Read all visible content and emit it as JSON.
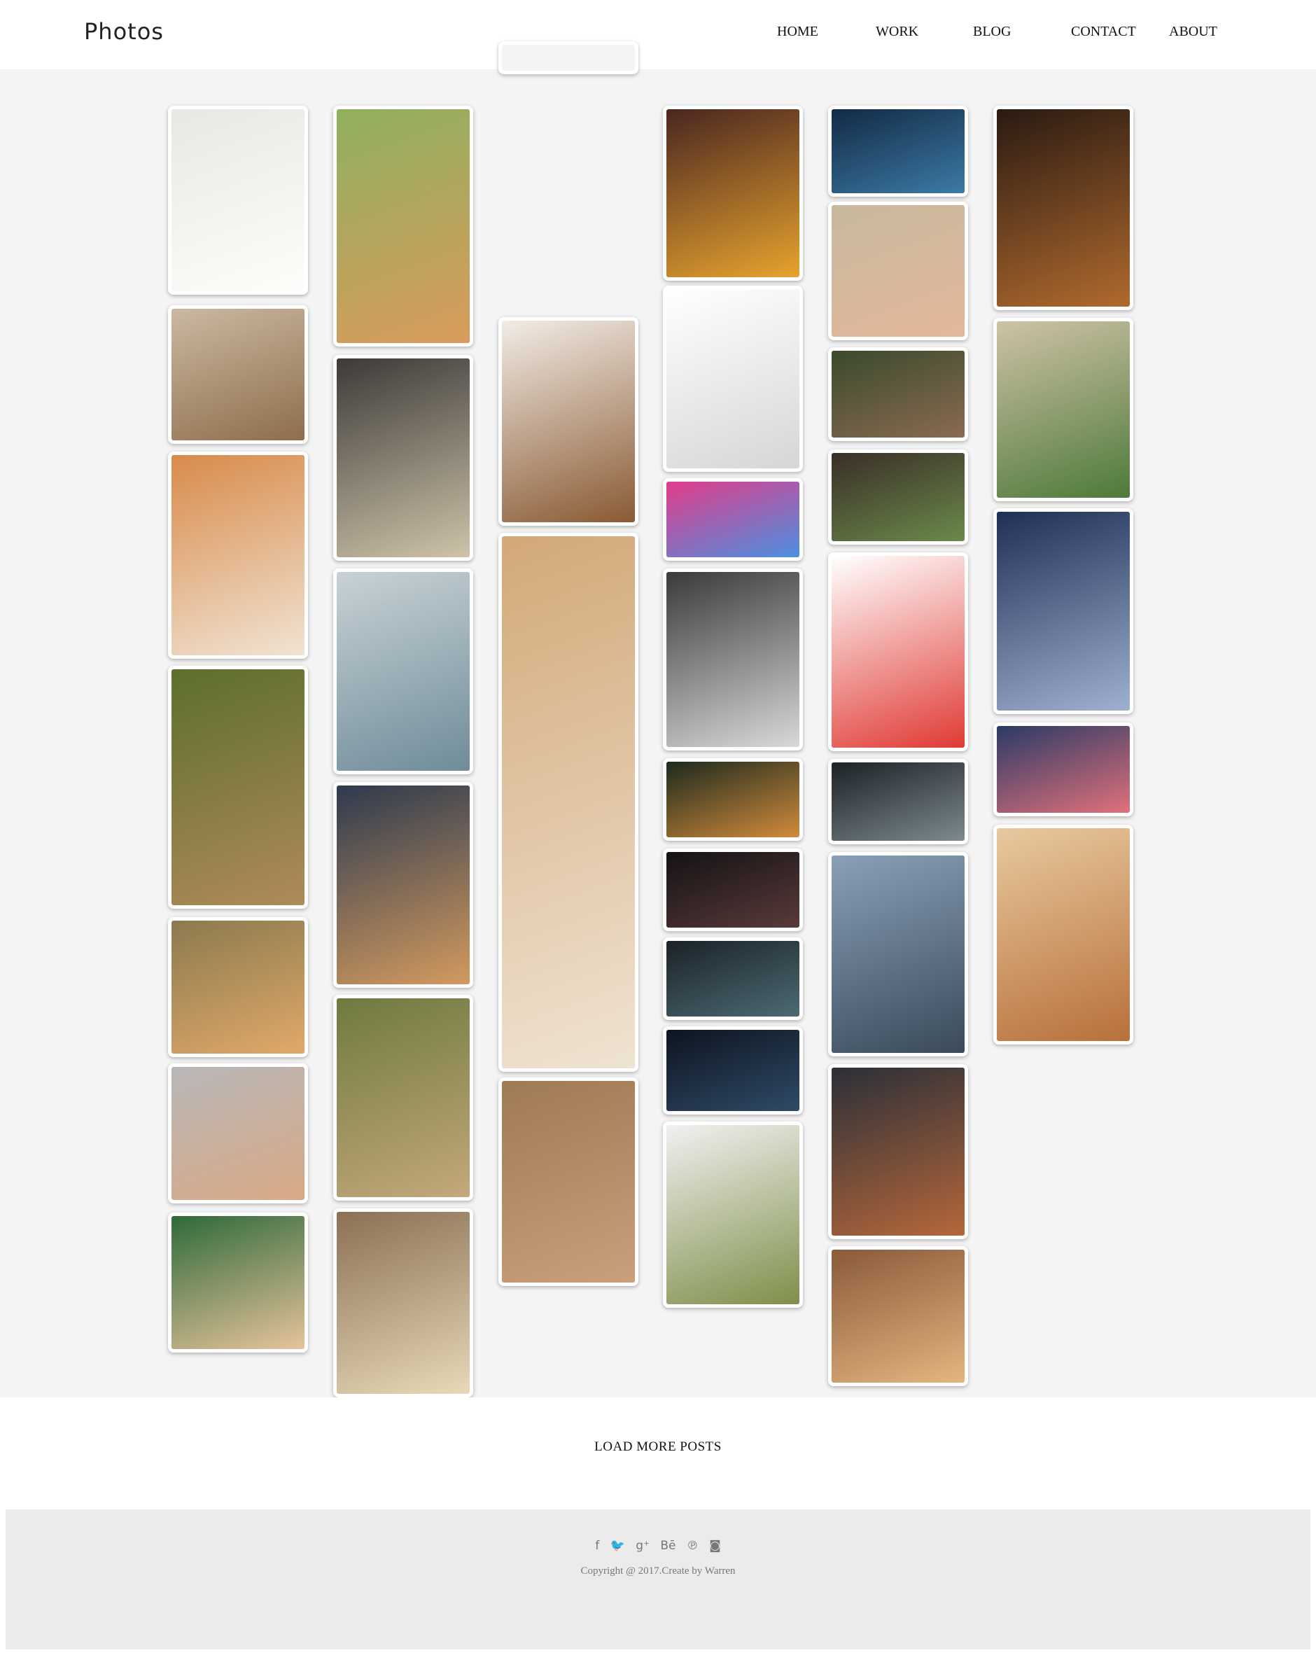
{
  "site": {
    "logo": "Photos"
  },
  "nav": {
    "items": [
      {
        "label": "HOME"
      },
      {
        "label": "WORK"
      },
      {
        "label": "BLOG"
      },
      {
        "label": "CONTACT"
      },
      {
        "label": "ABOUT"
      }
    ]
  },
  "gallery": {
    "photos": [
      {
        "name": "white-pomeranian-puppy",
        "colors": [
          "#e8e8e3",
          "#fdfdfb"
        ]
      },
      {
        "name": "shiba-in-hat",
        "colors": [
          "#cbb9a2",
          "#8e6e4b"
        ]
      },
      {
        "name": "shiba-closeup-face",
        "colors": [
          "#d88b4a",
          "#f1e3d3"
        ]
      },
      {
        "name": "corgi-butt-grass",
        "colors": [
          "#5c6f2c",
          "#b08a5a"
        ]
      },
      {
        "name": "shiba-held-in-hands",
        "colors": [
          "#8b7a4f",
          "#e1a969"
        ]
      },
      {
        "name": "shiba-plush-faces",
        "colors": [
          "#b8b7b8",
          "#d9a985"
        ]
      },
      {
        "name": "corgi-on-field",
        "colors": [
          "#2e6a3a",
          "#e7c39b"
        ]
      },
      {
        "name": "corgi-smiling",
        "colors": [
          "#8fb05e",
          "#d99b5b"
        ]
      },
      {
        "name": "tea-rice-bowl",
        "colors": [
          "#3c3a38",
          "#cfc3a9"
        ]
      },
      {
        "name": "lighthouse-sea",
        "colors": [
          "#c8d2d6",
          "#6f8c99"
        ]
      },
      {
        "name": "sydney-harbour-sunset",
        "colors": [
          "#2d3a4e",
          "#d39a5f"
        ]
      },
      {
        "name": "city-park-aerial",
        "colors": [
          "#6f7a3f",
          "#c4a87b"
        ]
      },
      {
        "name": "dumplings-plate",
        "colors": [
          "#8b7054",
          "#e8d9b9"
        ]
      },
      {
        "name": "cropped-top-card",
        "colors": [
          "#f4f4f4",
          "#f4f4f4"
        ]
      },
      {
        "name": "wonton-tray",
        "colors": [
          "#f2ece6",
          "#8a5a33"
        ]
      },
      {
        "name": "shiba-with-toast-collage",
        "colors": [
          "#d3a878",
          "#efe3d2"
        ]
      },
      {
        "name": "european-alley",
        "colors": [
          "#a07a52",
          "#c9a07a"
        ]
      },
      {
        "name": "noodles-fried-egg",
        "colors": [
          "#4a2620",
          "#e7a32e"
        ]
      },
      {
        "name": "anime-girl-sketch",
        "colors": [
          "#ffffff",
          "#d6d6d6"
        ]
      },
      {
        "name": "low-poly-gradient",
        "colors": [
          "#e23d8a",
          "#4c8fe0"
        ]
      },
      {
        "name": "pencil-sketch-paper",
        "colors": [
          "#3a3a3a",
          "#d9d9d9"
        ]
      },
      {
        "name": "tracer-game-art",
        "colors": [
          "#1d2a1e",
          "#d18b3b"
        ]
      },
      {
        "name": "dark-abstract-shards",
        "colors": [
          "#141214",
          "#5a3a3a"
        ]
      },
      {
        "name": "sports-car-garage",
        "colors": [
          "#1a2228",
          "#4d6a73"
        ]
      },
      {
        "name": "night-city-anime",
        "colors": [
          "#0d1420",
          "#2f4a66"
        ]
      },
      {
        "name": "plant-on-shelf",
        "colors": [
          "#f1f1f1",
          "#7f8f4a"
        ]
      },
      {
        "name": "starry-blue-sky",
        "colors": [
          "#122a45",
          "#3c7aa5"
        ]
      },
      {
        "name": "owl-stones-in-hand",
        "colors": [
          "#c7b89e",
          "#e4b79a"
        ]
      },
      {
        "name": "girl-by-window-1",
        "colors": [
          "#3a4a2c",
          "#8a6a52"
        ]
      },
      {
        "name": "girl-by-window-2",
        "colors": [
          "#3a2e28",
          "#6a8a4a"
        ]
      },
      {
        "name": "red-hair-anime-girl",
        "colors": [
          "#ffffff",
          "#e03a34"
        ]
      },
      {
        "name": "dark-armored-warrior",
        "colors": [
          "#1c2226",
          "#7d8a90"
        ]
      },
      {
        "name": "terrace-over-sea",
        "colors": [
          "#8aa0b8",
          "#3a4a5a"
        ]
      },
      {
        "name": "food-bowls-overhead",
        "colors": [
          "#2b2f38",
          "#b5673a"
        ]
      },
      {
        "name": "golden-retrievers",
        "colors": [
          "#8a5a3a",
          "#e3b680"
        ]
      },
      {
        "name": "glazed-shrimp-pan",
        "colors": [
          "#2a1a12",
          "#b06a2e"
        ]
      },
      {
        "name": "miniature-garden-pot",
        "colors": [
          "#cfc2a6",
          "#4d7a3a"
        ]
      },
      {
        "name": "snowy-trees-sunrise",
        "colors": [
          "#1f2f55",
          "#9fb0d0"
        ]
      },
      {
        "name": "mountain-sunset",
        "colors": [
          "#2b3a66",
          "#e0717a"
        ]
      },
      {
        "name": "kitten-in-basket",
        "colors": [
          "#e8c9a0",
          "#b8703a"
        ]
      }
    ]
  },
  "load_more": {
    "label": "LOAD MORE POSTS"
  },
  "footer": {
    "social": [
      {
        "name": "facebook",
        "glyph": "f"
      },
      {
        "name": "twitter",
        "glyph": "🐦"
      },
      {
        "name": "google-plus",
        "glyph": "g⁺"
      },
      {
        "name": "behance",
        "glyph": "Bē"
      },
      {
        "name": "pinterest",
        "glyph": "℗"
      },
      {
        "name": "instagram",
        "glyph": "◙"
      }
    ],
    "copyright": "Copyright @ 2017.Create by Warren"
  }
}
